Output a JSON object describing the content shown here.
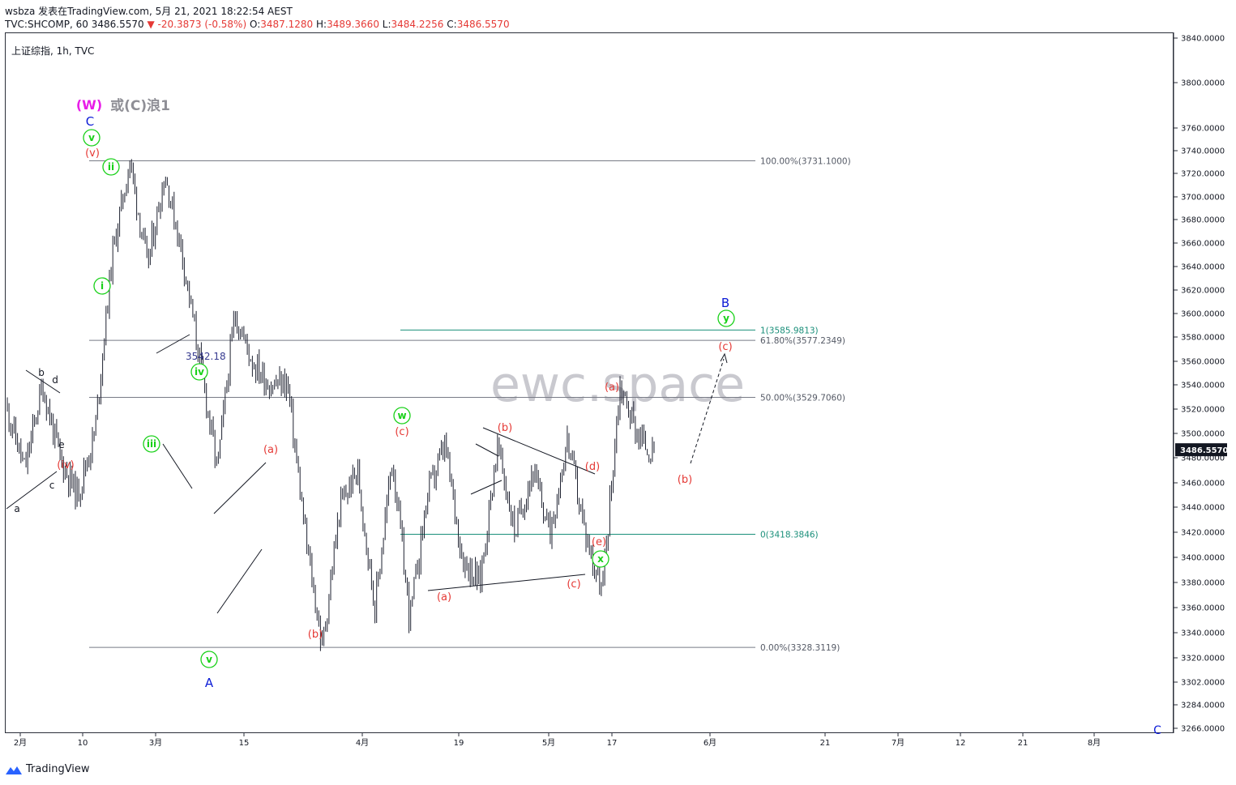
{
  "header": {
    "line1": "wsbza 发表在TradingView.com, 5月 21, 2021 18:22:54 AEST",
    "symbol": "TVC:SHCOMP, 60",
    "last": "3486.5570",
    "change": "-20.3873 (-0.58%)",
    "o_label": "O:",
    "o": "3487.1280",
    "h_label": "H:",
    "h": "3489.3660",
    "l_label": "L:",
    "l": "3484.2256",
    "c_label": "C:",
    "c": "3486.5570"
  },
  "symbol_label": "上证综指, 1h, TVC",
  "watermark": "ewc.space",
  "footer_logo": "TradingView",
  "price_badge": "3486.5570",
  "colors": {
    "red": "#e53935",
    "green": "#18d118",
    "blue": "#0b1bd6",
    "magenta": "#e81ee8",
    "teal": "#1a8f7a",
    "gray_line": "#787b86",
    "candle": "#1e2130"
  },
  "chart_data": {
    "type": "candlestick",
    "title": "上证综指, 1h, TVC",
    "ylim": [
      3266,
      3850
    ],
    "y_ticks": [
      "3840.0000",
      "3800.0000",
      "3760.0000",
      "3740.0000",
      "3720.0000",
      "3700.0000",
      "3680.0000",
      "3660.0000",
      "3640.0000",
      "3620.0000",
      "3600.0000",
      "3580.0000",
      "3560.0000",
      "3540.0000",
      "3520.0000",
      "3500.0000",
      "3480.0000",
      "3460.0000",
      "3440.0000",
      "3420.0000",
      "3400.0000",
      "3380.0000",
      "3360.0000",
      "3340.0000",
      "3320.0000",
      "3302.0000",
      "3284.0000",
      "3266.0000"
    ],
    "x_ticks": [
      "2月",
      "10",
      "3月",
      "15",
      "4月",
      "19",
      "5月",
      "17",
      "6月",
      "21",
      "7月",
      "12",
      "21",
      "8月"
    ],
    "price_path_approx": [
      3520,
      3470,
      3540,
      3480,
      3450,
      3500,
      3650,
      3731,
      3640,
      3720,
      3650,
      3560,
      3470,
      3600,
      3560,
      3540,
      3542,
      3420,
      3328,
      3440,
      3470,
      3360,
      3480,
      3350,
      3450,
      3490,
      3400,
      3380,
      3490,
      3420,
      3470,
      3420,
      3495,
      3420,
      3372,
      3540,
      3500,
      3480
    ],
    "fib_levels": [
      {
        "label": "100.00%(3731.1000)",
        "value": 3731.1
      },
      {
        "label": "61.80%(3577.2349)",
        "value": 3577.2349
      },
      {
        "label": "50.00%(3529.7060)",
        "value": 3529.706
      },
      {
        "label": "0.00%(3328.3119)",
        "value": 3328.3119
      },
      {
        "label": "1(3585.9813)",
        "value": 3585.9813
      },
      {
        "label": "0(3418.3846)",
        "value": 3418.3846
      }
    ],
    "price_annotation": "3542.18",
    "wave_labels": {
      "w_major": "(W)",
      "w_alt": "或(C)浪1",
      "C": "C",
      "A": "A",
      "B": "B",
      "C_edge": "C",
      "v": "v",
      "ii": "ii",
      "i": "i",
      "iii": "iii",
      "iv": "iv",
      "v2": "v",
      "w": "w",
      "x": "x",
      "y": "y",
      "pv": "(v)",
      "piv": "(iv)",
      "a_paren_1": "(a)",
      "b_paren_1": "(b)",
      "c_paren_w": "(c)",
      "a_paren_2": "(a)",
      "b_paren_2": "(b)",
      "c_paren_2": "(c)",
      "d_paren": "(d)",
      "e_paren": "(e)",
      "a_paren_3": "(a)",
      "b_paren_3": "(b)",
      "c_paren_3": "(c)",
      "sa": "a",
      "sb": "b",
      "sc": "c",
      "sd": "d",
      "se": "e"
    }
  }
}
